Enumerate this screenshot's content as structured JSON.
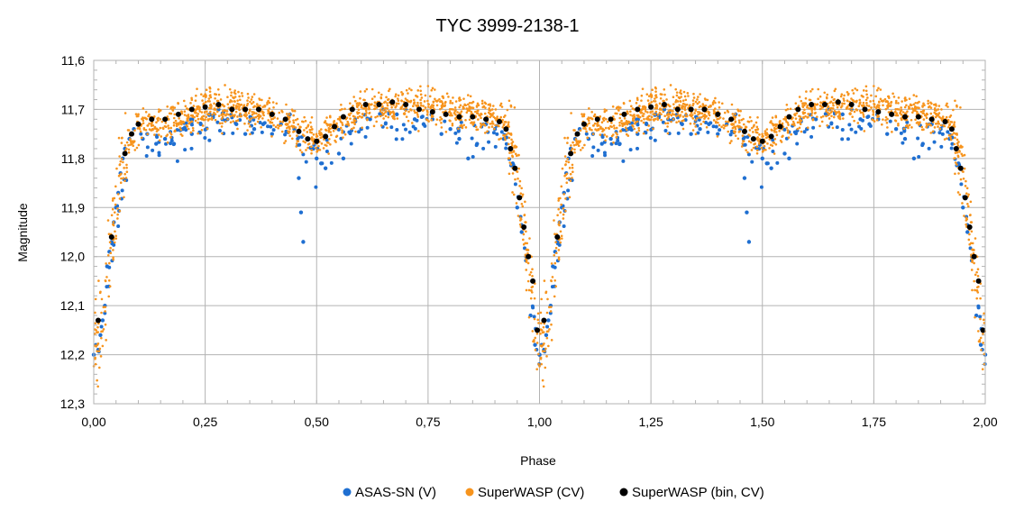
{
  "chart_data": {
    "type": "scatter",
    "title": "TYC 3999-2138-1",
    "xlabel": "Phase",
    "ylabel": "Magnitude",
    "xlim": [
      0,
      2
    ],
    "ylim": [
      11.6,
      12.3
    ],
    "y_inverted": true,
    "grid": true,
    "legend_position": "bottom",
    "x_ticks": [
      "0,00",
      "0,25",
      "0,50",
      "0,75",
      "1,00",
      "1,25",
      "1,50",
      "1,75",
      "2,00"
    ],
    "y_ticks": [
      "11,6",
      "11,7",
      "11,8",
      "11,9",
      "12,0",
      "12,1",
      "12,2",
      "12,3"
    ],
    "series": [
      {
        "name": "ASAS-SN (V)",
        "color": "#1f6fd1",
        "note_sampled": true,
        "points": [
          [
            0.0,
            12.2
          ],
          [
            0.005,
            12.18
          ],
          [
            0.01,
            12.19
          ],
          [
            0.015,
            12.16
          ],
          [
            0.02,
            12.13
          ],
          [
            0.025,
            12.1
          ],
          [
            0.03,
            12.02
          ],
          [
            0.035,
            11.99
          ],
          [
            0.04,
            11.97
          ],
          [
            0.045,
            11.93
          ],
          [
            0.05,
            11.9
          ],
          [
            0.055,
            11.87
          ],
          [
            0.06,
            11.83
          ],
          [
            0.065,
            11.8
          ],
          [
            0.07,
            11.78
          ],
          [
            0.08,
            11.76
          ],
          [
            0.09,
            11.74
          ],
          [
            0.1,
            11.73
          ],
          [
            0.11,
            11.76
          ],
          [
            0.12,
            11.75
          ],
          [
            0.14,
            11.77
          ],
          [
            0.16,
            11.76
          ],
          [
            0.18,
            11.77
          ],
          [
            0.2,
            11.74
          ],
          [
            0.22,
            11.75
          ],
          [
            0.24,
            11.73
          ],
          [
            0.26,
            11.71
          ],
          [
            0.28,
            11.7
          ],
          [
            0.3,
            11.72
          ],
          [
            0.32,
            11.73
          ],
          [
            0.34,
            11.75
          ],
          [
            0.36,
            11.74
          ],
          [
            0.38,
            11.73
          ],
          [
            0.4,
            11.75
          ],
          [
            0.42,
            11.73
          ],
          [
            0.44,
            11.71
          ],
          [
            0.45,
            11.74
          ],
          [
            0.46,
            11.84
          ],
          [
            0.465,
            11.91
          ],
          [
            0.47,
            11.97
          ],
          [
            0.5,
            11.8
          ],
          [
            0.51,
            11.81
          ],
          [
            0.52,
            11.82
          ],
          [
            0.55,
            11.79
          ],
          [
            0.56,
            11.8
          ],
          [
            0.6,
            11.74
          ],
          [
            0.62,
            11.72
          ],
          [
            0.65,
            11.7
          ],
          [
            0.68,
            11.71
          ],
          [
            0.7,
            11.7
          ],
          [
            0.72,
            11.72
          ],
          [
            0.74,
            11.73
          ],
          [
            0.76,
            11.72
          ],
          [
            0.78,
            11.75
          ],
          [
            0.8,
            11.74
          ],
          [
            0.82,
            11.76
          ],
          [
            0.84,
            11.8
          ],
          [
            0.86,
            11.77
          ],
          [
            0.88,
            11.73
          ],
          [
            0.9,
            11.74
          ],
          [
            0.92,
            11.76
          ],
          [
            0.94,
            11.81
          ],
          [
            0.95,
            11.9
          ],
          [
            0.96,
            11.95
          ],
          [
            0.97,
            12.0
          ],
          [
            0.98,
            12.12
          ],
          [
            0.99,
            12.18
          ],
          [
            1.0,
            12.2
          ]
        ]
      },
      {
        "name": "SuperWASP (CV)",
        "color": "#f7941d",
        "note_sampled": true,
        "points": []
      },
      {
        "name": "SuperWASP (bin, CV)",
        "color": "#000000",
        "points": [
          [
            0.01,
            12.13
          ],
          [
            0.04,
            11.96
          ],
          [
            0.07,
            11.79
          ],
          [
            0.085,
            11.75
          ],
          [
            0.1,
            11.73
          ],
          [
            0.13,
            11.72
          ],
          [
            0.16,
            11.72
          ],
          [
            0.19,
            11.71
          ],
          [
            0.22,
            11.7
          ],
          [
            0.25,
            11.695
          ],
          [
            0.28,
            11.69
          ],
          [
            0.31,
            11.7
          ],
          [
            0.34,
            11.7
          ],
          [
            0.37,
            11.7
          ],
          [
            0.4,
            11.71
          ],
          [
            0.43,
            11.72
          ],
          [
            0.46,
            11.745
          ],
          [
            0.48,
            11.76
          ],
          [
            0.5,
            11.765
          ],
          [
            0.52,
            11.755
          ],
          [
            0.54,
            11.735
          ],
          [
            0.56,
            11.715
          ],
          [
            0.58,
            11.7
          ],
          [
            0.61,
            11.69
          ],
          [
            0.64,
            11.69
          ],
          [
            0.67,
            11.685
          ],
          [
            0.7,
            11.69
          ],
          [
            0.73,
            11.7
          ],
          [
            0.76,
            11.705
          ],
          [
            0.79,
            11.71
          ],
          [
            0.82,
            11.715
          ],
          [
            0.85,
            11.715
          ],
          [
            0.88,
            11.72
          ],
          [
            0.91,
            11.725
          ],
          [
            0.925,
            11.74
          ],
          [
            0.935,
            11.78
          ],
          [
            0.945,
            11.82
          ],
          [
            0.955,
            11.88
          ],
          [
            0.965,
            11.94
          ],
          [
            0.975,
            12.0
          ],
          [
            0.985,
            12.05
          ],
          [
            0.995,
            12.15
          ]
        ]
      }
    ]
  }
}
